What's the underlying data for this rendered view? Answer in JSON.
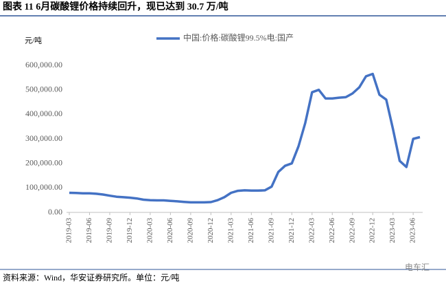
{
  "chart_data": {
    "type": "line",
    "title": "图表 11 6月碳酸锂价格持续回升，现已达到 30.7 万/吨",
    "y_unit": "元/吨",
    "source": "资料来源：Wind，华安证券研究所。单位：元/吨",
    "watermark": "电车汇",
    "categories": [
      "2019-03",
      null,
      null,
      "2019-06",
      null,
      null,
      "2019-09",
      null,
      null,
      "2019-12",
      null,
      null,
      "2020-03",
      null,
      null,
      "2020-06",
      null,
      null,
      "2020-09",
      null,
      null,
      "2020-12",
      null,
      null,
      "2021-03",
      null,
      null,
      "2021-06",
      null,
      null,
      "2021-09",
      null,
      null,
      "2021-12",
      null,
      null,
      "2022-03",
      null,
      null,
      "2022-06",
      null,
      null,
      "2022-09",
      null,
      null,
      "2022-12",
      null,
      null,
      "2023-03",
      null,
      null,
      "2023-06",
      null
    ],
    "series": [
      {
        "name": "中国:价格:碳酸锂99.5%电:国产",
        "color": "#4472c4",
        "values": [
          80000,
          79000,
          78000,
          78000,
          76000,
          73000,
          68000,
          64000,
          62000,
          60000,
          57000,
          52000,
          50000,
          49000,
          49000,
          47000,
          45000,
          43000,
          41000,
          41000,
          41000,
          42000,
          50000,
          62000,
          80000,
          88000,
          90000,
          89000,
          89000,
          90000,
          105000,
          165000,
          190000,
          200000,
          270000,
          365000,
          490000,
          500000,
          465000,
          465000,
          468000,
          470000,
          485000,
          510000,
          555000,
          565000,
          480000,
          460000,
          340000,
          210000,
          185000,
          300000,
          307000
        ]
      }
    ],
    "ylim": [
      0,
      600000
    ],
    "yticks": [
      {
        "value": 0,
        "label": "0.00"
      },
      {
        "value": 100000,
        "label": "100,000.00"
      },
      {
        "value": 200000,
        "label": "200,000.00"
      },
      {
        "value": 300000,
        "label": "300,000.00"
      },
      {
        "value": 400000,
        "label": "400,000.00"
      },
      {
        "value": 500000,
        "label": "500,000.00"
      },
      {
        "value": 600000,
        "label": "600,000.00"
      }
    ],
    "grid": false
  }
}
